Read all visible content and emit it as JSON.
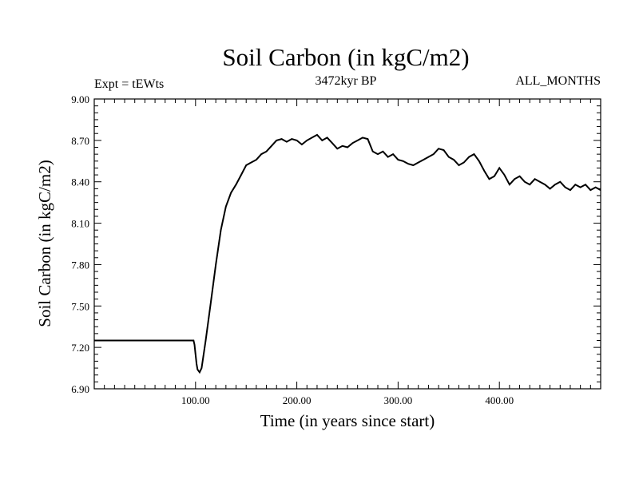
{
  "chart_data": {
    "type": "line",
    "title": "Soil Carbon (in kgC/m2)",
    "subtitle": "3472kyr BP",
    "left_label": "Expt = tEWts",
    "right_label": "ALL_MONTHS",
    "xlabel": "Time (in years since start)",
    "ylabel": "Soil Carbon (in kgC/m2)",
    "xlim": [
      0,
      500
    ],
    "ylim": [
      6.9,
      9.0
    ],
    "x_ticks": [
      100,
      200,
      300,
      400
    ],
    "x_tick_labels": [
      "100.00",
      "200.00",
      "300.00",
      "400.00"
    ],
    "y_ticks": [
      6.9,
      7.2,
      7.5,
      7.8,
      8.1,
      8.4,
      8.7,
      9.0
    ],
    "y_tick_labels": [
      "6.90",
      "7.20",
      "7.50",
      "7.80",
      "8.10",
      "8.40",
      "8.70",
      "9.00"
    ],
    "series": [
      {
        "name": "Soil Carbon",
        "color": "#000000",
        "x": [
          0,
          98,
          99,
          100,
          101,
          102,
          104,
          106,
          110,
          115,
          120,
          125,
          130,
          135,
          140,
          145,
          150,
          155,
          160,
          165,
          170,
          175,
          180,
          185,
          190,
          195,
          200,
          205,
          210,
          215,
          220,
          225,
          230,
          235,
          240,
          245,
          250,
          255,
          260,
          265,
          270,
          275,
          280,
          285,
          290,
          295,
          300,
          305,
          310,
          315,
          320,
          325,
          330,
          335,
          340,
          345,
          350,
          355,
          360,
          365,
          370,
          375,
          380,
          385,
          390,
          395,
          400,
          405,
          410,
          415,
          420,
          425,
          430,
          435,
          440,
          445,
          450,
          455,
          460,
          465,
          470,
          475,
          480,
          485,
          490,
          495,
          500
        ],
        "y": [
          7.25,
          7.25,
          7.22,
          7.15,
          7.08,
          7.04,
          7.02,
          7.05,
          7.25,
          7.52,
          7.8,
          8.05,
          8.22,
          8.32,
          8.38,
          8.45,
          8.52,
          8.54,
          8.56,
          8.6,
          8.62,
          8.66,
          8.7,
          8.71,
          8.69,
          8.71,
          8.7,
          8.67,
          8.7,
          8.72,
          8.74,
          8.7,
          8.72,
          8.68,
          8.64,
          8.66,
          8.65,
          8.68,
          8.7,
          8.72,
          8.71,
          8.62,
          8.6,
          8.62,
          8.58,
          8.6,
          8.56,
          8.55,
          8.53,
          8.52,
          8.54,
          8.56,
          8.58,
          8.6,
          8.64,
          8.63,
          8.58,
          8.56,
          8.52,
          8.54,
          8.58,
          8.6,
          8.55,
          8.48,
          8.42,
          8.44,
          8.5,
          8.45,
          8.38,
          8.42,
          8.44,
          8.4,
          8.38,
          8.42,
          8.4,
          8.38,
          8.35,
          8.38,
          8.4,
          8.36,
          8.34,
          8.38,
          8.36,
          8.38,
          8.34,
          8.36,
          8.34
        ]
      }
    ]
  }
}
